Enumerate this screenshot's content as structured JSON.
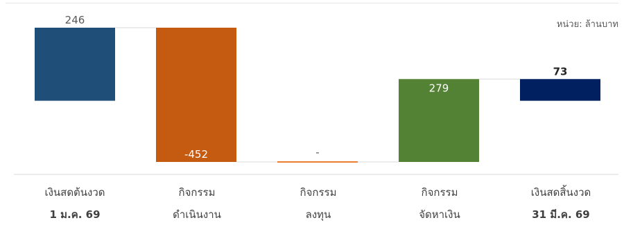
{
  "unit_label": "หน่วย: ล้านบาท",
  "chart_data": {
    "type": "bar",
    "subtype": "waterfall",
    "categories": [
      [
        "เงินสดต้นงวด",
        "1 ม.ค. 69"
      ],
      [
        "กิจกรรม",
        "ดำเนินงาน"
      ],
      [
        "กิจกรรม",
        "ลงทุน"
      ],
      [
        "กิจกรรม",
        "จัดหาเงิน"
      ],
      [
        "เงินสดสิ้นงวด",
        "31 มี.ค. 69"
      ]
    ],
    "values": [
      246,
      -452,
      0,
      279,
      73
    ],
    "value_labels": [
      "246",
      "-452",
      "-",
      "279",
      "73"
    ],
    "bar_kinds": [
      "total",
      "change",
      "change",
      "change",
      "total"
    ],
    "colors": [
      "#1f4e79",
      "#c55a11",
      "#ed7d31",
      "#548235",
      "#002060"
    ],
    "ylim": [
      -206,
      246
    ],
    "bold_categories": [
      false,
      false,
      false,
      false,
      true
    ],
    "connectors": true,
    "grid": false
  }
}
